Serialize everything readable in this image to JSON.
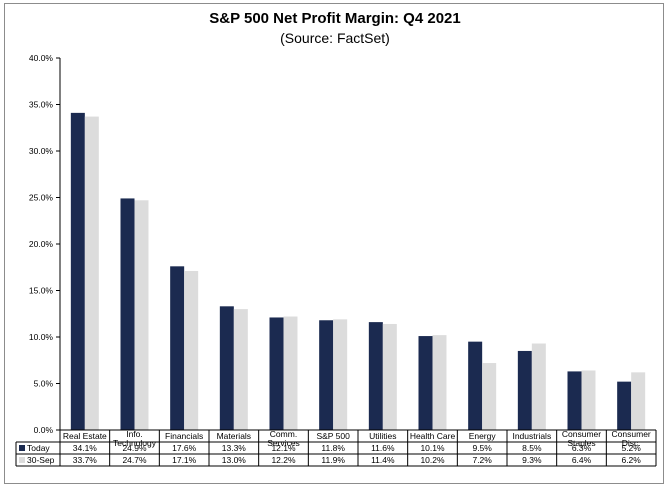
{
  "chart_data": {
    "type": "bar",
    "title": "S&P 500 Net Profit Margin: Q4 2021",
    "subtitle": "(Source: FactSet)",
    "categories": [
      [
        "Real Estate"
      ],
      [
        "Info.",
        "Technology"
      ],
      [
        "Financials"
      ],
      [
        "Materials"
      ],
      [
        "Comm.",
        "Services"
      ],
      [
        "S&P 500"
      ],
      [
        "Utilities"
      ],
      [
        "Health Care"
      ],
      [
        "Energy"
      ],
      [
        "Industrials"
      ],
      [
        "Consumer",
        "Staples"
      ],
      [
        "Consumer",
        "Disc."
      ]
    ],
    "series": [
      {
        "name": "Today",
        "color": "#1b2a50",
        "values": [
          34.1,
          24.9,
          17.6,
          13.3,
          12.1,
          11.8,
          11.6,
          10.1,
          9.5,
          8.5,
          6.3,
          5.2
        ],
        "labels": [
          "34.1%",
          "24.9%",
          "17.6%",
          "13.3%",
          "12.1%",
          "11.8%",
          "11.6%",
          "10.1%",
          "9.5%",
          "8.5%",
          "6.3%",
          "5.2%"
        ]
      },
      {
        "name": "30-Sep",
        "color": "#dcdcdc",
        "values": [
          33.7,
          24.7,
          17.1,
          13.0,
          12.2,
          11.9,
          11.4,
          10.2,
          7.2,
          9.3,
          6.4,
          6.2
        ],
        "labels": [
          "33.7%",
          "24.7%",
          "17.1%",
          "13.0%",
          "12.2%",
          "11.9%",
          "11.4%",
          "10.2%",
          "7.2%",
          "9.3%",
          "6.4%",
          "6.2%"
        ]
      }
    ],
    "ylim": [
      0,
      40
    ],
    "yticks": [
      "0.0%",
      "5.0%",
      "10.0%",
      "15.0%",
      "20.0%",
      "25.0%",
      "30.0%",
      "35.0%",
      "40.0%"
    ],
    "grid": false,
    "legend": "data-table"
  }
}
